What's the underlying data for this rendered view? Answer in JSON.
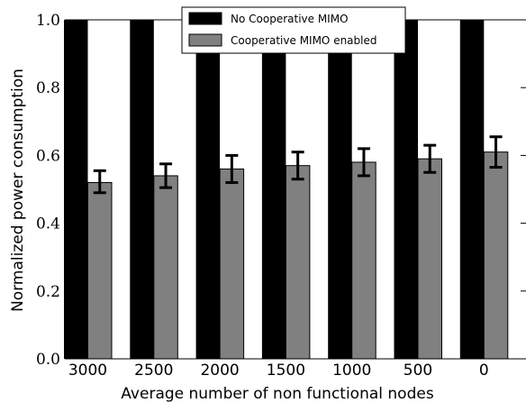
{
  "chart_data": {
    "type": "bar",
    "xlabel": "Average number of non functional nodes",
    "ylabel": "Normalized power consumption",
    "categories": [
      "3000",
      "2500",
      "2000",
      "1500",
      "1000",
      "500",
      "0"
    ],
    "ylim": [
      0.0,
      1.0
    ],
    "yticks": [
      "0.0",
      "0.2",
      "0.4",
      "0.6",
      "0.8",
      "1.0"
    ],
    "series": [
      {
        "name": "No Cooperative MIMO",
        "color": "#000000",
        "values": [
          1.0,
          1.0,
          1.0,
          1.0,
          1.0,
          1.0,
          1.0
        ]
      },
      {
        "name": "Cooperative MIMO enabled",
        "color": "#808080",
        "values": [
          0.52,
          0.54,
          0.56,
          0.57,
          0.58,
          0.59,
          0.61
        ],
        "error_low": [
          0.49,
          0.505,
          0.52,
          0.53,
          0.54,
          0.55,
          0.565
        ],
        "error_high": [
          0.555,
          0.575,
          0.6,
          0.61,
          0.62,
          0.63,
          0.655
        ]
      }
    ],
    "legend": "top-center",
    "grid": false
  }
}
